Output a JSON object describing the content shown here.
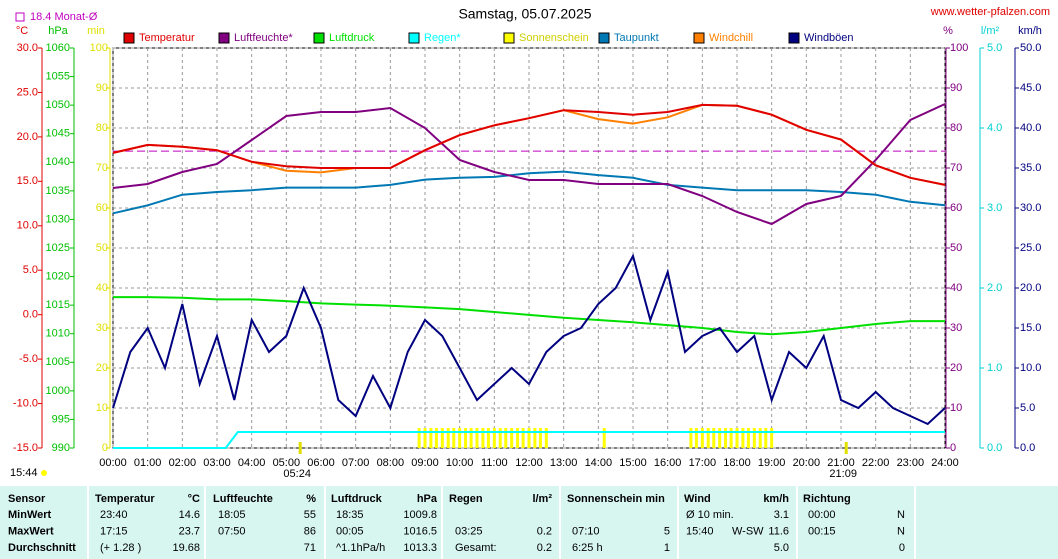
{
  "chart_data": {
    "type": "line",
    "title": "Samstag, 05.07.2025",
    "source": "www.wetter-pfalzen.com",
    "monthly_mean": 18.4,
    "monthly_mean_label": "18.4 Monat-Ø",
    "day_length": "15:44",
    "sunrise": {
      "x": 5.4,
      "label": "05:24"
    },
    "sunset": {
      "x": 21.15,
      "label": "21:09"
    },
    "xlim": [
      0,
      24
    ],
    "xticks": [
      {
        "value": 0,
        "label": "00:00"
      },
      {
        "value": 1,
        "label": "01:00"
      },
      {
        "value": 2,
        "label": "02:00"
      },
      {
        "value": 3,
        "label": "03:00"
      },
      {
        "value": 4,
        "label": "04:00"
      },
      {
        "value": 5,
        "label": "05:00"
      },
      {
        "value": 6,
        "label": "06:00"
      },
      {
        "value": 7,
        "label": "07:00"
      },
      {
        "value": 8,
        "label": "08:00"
      },
      {
        "value": 9,
        "label": "09:00"
      },
      {
        "value": 10,
        "label": "10:00"
      },
      {
        "value": 11,
        "label": "11:00"
      },
      {
        "value": 12,
        "label": "12:00"
      },
      {
        "value": 13,
        "label": "13:00"
      },
      {
        "value": 14,
        "label": "14:00"
      },
      {
        "value": 15,
        "label": "15:00"
      },
      {
        "value": 16,
        "label": "16:00"
      },
      {
        "value": 17,
        "label": "17:00"
      },
      {
        "value": 18,
        "label": "18:00"
      },
      {
        "value": 19,
        "label": "19:00"
      },
      {
        "value": 20,
        "label": "20:00"
      },
      {
        "value": 21,
        "label": "21:00"
      },
      {
        "value": 22,
        "label": "22:00"
      },
      {
        "value": 23,
        "label": "23:00"
      },
      {
        "value": 24,
        "label": "24:00"
      }
    ],
    "x": [
      0,
      1,
      2,
      3,
      4,
      5,
      6,
      7,
      8,
      9,
      10,
      11,
      12,
      13,
      14,
      15,
      16,
      17,
      18,
      19,
      20,
      21,
      22,
      23,
      24
    ],
    "axes": [
      {
        "label": "°C",
        "color": "#e00000",
        "lim": [
          -15,
          30
        ],
        "ticks": [
          {
            "value": -15,
            "label": "-15.0"
          },
          {
            "value": -10,
            "label": "-10.0"
          },
          {
            "value": -5,
            "label": "-5.0"
          },
          {
            "value": 0,
            "label": "0.0"
          },
          {
            "value": 5,
            "label": "5.0"
          },
          {
            "value": 10,
            "label": "10.0"
          },
          {
            "value": 15,
            "label": "15.0"
          },
          {
            "value": 20,
            "label": "20.0"
          },
          {
            "value": 25,
            "label": "25.0"
          },
          {
            "value": 30,
            "label": "30.0"
          }
        ]
      },
      {
        "label": "hPa",
        "color": "#00c000",
        "lim": [
          990,
          1060
        ],
        "ticks": [
          990,
          995,
          1000,
          1005,
          1010,
          1015,
          1020,
          1025,
          1030,
          1035,
          1040,
          1045,
          1050,
          1055,
          1060
        ]
      },
      {
        "label": "min",
        "color": "#e0e000",
        "lim": [
          0,
          100
        ],
        "ticks": [
          0,
          10,
          20,
          30,
          40,
          50,
          60,
          70,
          80,
          90,
          100
        ]
      },
      {
        "label": "%",
        "color": "#800080",
        "lim": [
          0,
          100
        ],
        "ticks": [
          0,
          10,
          20,
          30,
          40,
          50,
          60,
          70,
          80,
          90,
          100
        ]
      },
      {
        "label": "l/m²",
        "color": "#00d0d0",
        "lim": [
          0,
          5
        ],
        "ticks": [
          {
            "value": 0,
            "label": "0.0"
          },
          {
            "value": 1,
            "label": "1.0"
          },
          {
            "value": 2,
            "label": "2.0"
          },
          {
            "value": 3,
            "label": "3.0"
          },
          {
            "value": 4,
            "label": "4.0"
          },
          {
            "value": 5,
            "label": "5.0"
          }
        ]
      },
      {
        "label": "km/h",
        "color": "#000080",
        "lim": [
          0,
          50
        ],
        "ticks": [
          {
            "value": 0,
            "label": "0.0"
          },
          {
            "value": 5,
            "label": "5.0"
          },
          {
            "value": 10,
            "label": "10.0"
          },
          {
            "value": 15,
            "label": "15.0"
          },
          {
            "value": 20,
            "label": "20.0"
          },
          {
            "value": 25,
            "label": "25.0"
          },
          {
            "value": 30,
            "label": "30.0"
          },
          {
            "value": 35,
            "label": "35.0"
          },
          {
            "value": 40,
            "label": "40.0"
          },
          {
            "value": 45,
            "label": "45.0"
          },
          {
            "value": 50,
            "label": "50.0"
          }
        ]
      }
    ],
    "series": [
      {
        "name": "Temperatur",
        "color": "#e00000",
        "axis": 0,
        "values": [
          18.2,
          19.1,
          18.9,
          18.5,
          17.2,
          16.7,
          16.5,
          16.5,
          16.5,
          18.5,
          20.2,
          21.3,
          22.1,
          23.0,
          22.8,
          22.5,
          22.8,
          23.6,
          23.5,
          22.5,
          20.8,
          19.7,
          16.8,
          15.4,
          14.6
        ]
      },
      {
        "name": "Luftfeuchte*",
        "color": "#800080",
        "axis": 3,
        "values": [
          65,
          66,
          69,
          71,
          77,
          83,
          84,
          84,
          85,
          80,
          72,
          69,
          67,
          67,
          66,
          66,
          66,
          63,
          59,
          56,
          61,
          63,
          72,
          82,
          86
        ]
      },
      {
        "name": "Luftdruck",
        "color": "#00e000",
        "axis": 1,
        "values": [
          1016.4,
          1016.4,
          1016.3,
          1016.0,
          1016.0,
          1015.7,
          1015.3,
          1015.1,
          1014.9,
          1014.6,
          1014.3,
          1013.8,
          1013.3,
          1012.8,
          1012.4,
          1012.0,
          1011.5,
          1011.0,
          1010.3,
          1009.9,
          1010.3,
          1011.0,
          1011.7,
          1012.2,
          1012.2
        ]
      },
      {
        "name": "Regen*",
        "color": "#00ffff",
        "axis": 4,
        "x": [
          0,
          3.25,
          3.6,
          24
        ],
        "values": [
          0,
          0,
          0.2,
          0.2
        ]
      },
      {
        "name": "Sonnenschein",
        "color": "#ffff00",
        "axis": 2,
        "type": "bar",
        "x": [
          8.83,
          9.0,
          9.17,
          9.33,
          9.5,
          9.67,
          9.83,
          10,
          10.17,
          10.33,
          10.5,
          10.67,
          10.83,
          11,
          11.17,
          11.33,
          11.5,
          11.67,
          11.83,
          12,
          12.17,
          12.33,
          12.5,
          14.17,
          16.67,
          16.83,
          17,
          17.17,
          17.33,
          17.5,
          17.67,
          17.83,
          18,
          18.17,
          18.33,
          18.5,
          18.67,
          18.83,
          19.0
        ],
        "values": [
          5,
          5,
          5,
          5,
          5,
          5,
          5,
          5,
          5,
          5,
          5,
          5,
          5,
          5,
          5,
          5,
          5,
          5,
          5,
          5,
          5,
          5,
          5,
          5,
          5,
          5,
          5,
          5,
          5,
          5,
          5,
          5,
          5,
          5,
          5,
          5,
          5,
          5,
          5
        ]
      },
      {
        "name": "Taupunkt",
        "color": "#0078b4",
        "axis": 0,
        "values": [
          11.4,
          12.3,
          13.5,
          13.8,
          14.0,
          14.3,
          14.3,
          14.3,
          14.6,
          15.2,
          15.4,
          15.5,
          15.9,
          16.1,
          15.7,
          15.4,
          14.6,
          14.3,
          14.0,
          14.0,
          14.0,
          13.8,
          13.5,
          12.7,
          12.3
        ]
      },
      {
        "name": "Windchill",
        "color": "#ff8000",
        "axis": 0,
        "values": [
          18.2,
          19.1,
          18.9,
          18.5,
          17.2,
          16.2,
          16.0,
          16.5,
          16.5,
          18.5,
          20.2,
          21.3,
          22.1,
          23.0,
          22.0,
          21.5,
          22.2,
          23.6,
          23.5,
          22.5,
          20.8,
          19.7,
          16.8,
          15.4,
          14.6
        ]
      },
      {
        "name": "Windböen",
        "color": "#000080",
        "axis": 5,
        "x": [
          0,
          0.5,
          1,
          1.5,
          2,
          2.5,
          3,
          3.5,
          4,
          4.5,
          5,
          5.5,
          6,
          6.5,
          7,
          7.5,
          8,
          8.5,
          9,
          9.5,
          10,
          10.5,
          11,
          11.5,
          12,
          12.5,
          13,
          13.5,
          14,
          14.5,
          15,
          15.5,
          16,
          16.5,
          17,
          17.5,
          18,
          18.5,
          19,
          19.5,
          20,
          20.5,
          21,
          21.5,
          22,
          22.5,
          23,
          23.5,
          24
        ],
        "values": [
          5,
          12,
          15,
          10,
          18,
          8,
          14,
          6,
          16,
          12,
          14,
          20,
          15,
          6,
          4,
          9,
          5,
          12,
          16,
          14,
          10,
          6,
          8,
          10,
          8,
          12,
          14,
          15,
          18,
          20,
          24,
          16,
          22,
          12,
          14,
          15,
          12,
          14,
          6,
          12,
          10,
          14,
          6,
          5,
          7,
          5,
          4,
          3,
          5
        ]
      }
    ]
  },
  "table": {
    "header": [
      "Sensor",
      "Temperatur",
      "°C",
      "Luftfeuchte",
      "%",
      "Luftdruck",
      "hPa",
      "Regen",
      "l/m²",
      "Sonnenschein min",
      "Wind",
      "km/h",
      "Richtung"
    ],
    "rows": [
      [
        "MinWert",
        "23:40",
        "14.6",
        "18:05",
        "55",
        "18:35",
        "1009.8",
        null,
        null,
        null,
        null,
        "Ø 10 min.",
        null,
        "3.1",
        "00:00",
        "N"
      ],
      [
        "MaxWert",
        "17:15",
        "23.7",
        "07:50",
        "86",
        "00:05",
        "1016.5",
        "03:25",
        "0.2",
        "07:10",
        "5",
        "15:40",
        "W-SW",
        "11.6",
        "00:15",
        "N"
      ],
      [
        "Durchschnitt",
        "(+ 1.28 )",
        "19.68",
        null,
        "71",
        "^1.1hPa/h",
        "1013.3",
        "Gesamt:",
        "0.2",
        "6:25 h",
        "1",
        null,
        null,
        "5.0",
        null,
        "0"
      ]
    ]
  }
}
